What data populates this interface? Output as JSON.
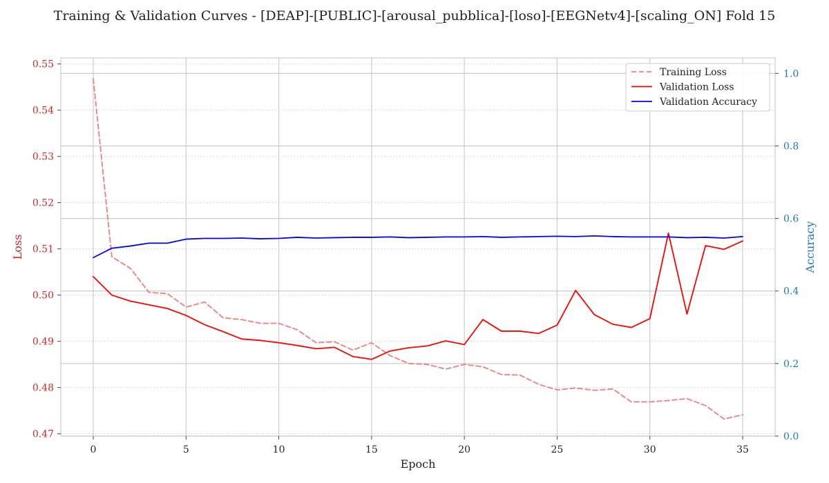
{
  "chart_data": {
    "type": "line",
    "title": "Training & Validation Curves - [DEAP]-[PUBLIC]-[arousal_pubblica]-[loso]-[EEGNetv4]-[scaling_ON] Fold 15",
    "xlabel": "Epoch",
    "ylabel_left": "Loss",
    "ylabel_right": "Accuracy",
    "xlim": [
      -1.75,
      36.75
    ],
    "ylim_left": [
      0.4695,
      0.5513
    ],
    "ylim_right": [
      0.0,
      1.0425
    ],
    "x_ticks": [
      0,
      5,
      10,
      15,
      20,
      25,
      30,
      35
    ],
    "x_tick_labels": [
      "0",
      "5",
      "10",
      "15",
      "20",
      "25",
      "30",
      "35"
    ],
    "y_left_ticks": [
      0.47,
      0.48,
      0.49,
      0.5,
      0.51,
      0.52,
      0.53,
      0.54,
      0.55
    ],
    "y_left_tick_labels": [
      "0.47",
      "0.48",
      "0.49",
      "0.50",
      "0.51",
      "0.52",
      "0.53",
      "0.54",
      "0.55"
    ],
    "y_right_ticks": [
      0.0,
      0.2,
      0.4,
      0.6,
      0.8,
      1.0
    ],
    "y_right_tick_labels": [
      "0.0",
      "0.2",
      "0.4",
      "0.6",
      "0.8",
      "1.0"
    ],
    "grid": true,
    "legend_position": "top-right",
    "x": [
      0,
      1,
      2,
      3,
      4,
      5,
      6,
      7,
      8,
      9,
      10,
      11,
      12,
      13,
      14,
      15,
      16,
      17,
      18,
      19,
      20,
      21,
      22,
      23,
      24,
      25,
      26,
      27,
      28,
      29,
      30,
      31,
      32,
      33,
      34,
      35
    ],
    "series": [
      {
        "name": "Training Loss",
        "axis": "left",
        "color": "#f08080",
        "style": "dashed",
        "values": [
          0.5468,
          0.5083,
          0.5058,
          0.5006,
          0.5003,
          0.4974,
          0.4985,
          0.4951,
          0.4947,
          0.4939,
          0.4939,
          0.4925,
          0.4897,
          0.4899,
          0.4881,
          0.4897,
          0.4869,
          0.4852,
          0.485,
          0.484,
          0.485,
          0.4845,
          0.4828,
          0.4827,
          0.4807,
          0.4795,
          0.4799,
          0.4794,
          0.4797,
          0.4769,
          0.4769,
          0.4772,
          0.4776,
          0.4761,
          0.4732,
          0.4741
        ]
      },
      {
        "name": "Validation Loss",
        "axis": "left",
        "color": "#ff0000",
        "style": "solid",
        "values": [
          0.504,
          0.5,
          0.4987,
          0.4979,
          0.4971,
          0.4956,
          0.4936,
          0.4921,
          0.4905,
          0.4902,
          0.4897,
          0.4891,
          0.4884,
          0.4887,
          0.4867,
          0.4861,
          0.4879,
          0.4886,
          0.489,
          0.4901,
          0.4893,
          0.4947,
          0.4922,
          0.4922,
          0.4917,
          0.4935,
          0.501,
          0.4958,
          0.4937,
          0.493,
          0.4949,
          0.5134,
          0.4959,
          0.5107,
          0.5099,
          0.5117
        ]
      },
      {
        "name": "Validation Accuracy",
        "axis": "right",
        "color": "#0000ff",
        "style": "solid",
        "values": [
          0.492,
          0.518,
          0.524,
          0.532,
          0.532,
          0.543,
          0.545,
          0.545,
          0.546,
          0.544,
          0.545,
          0.548,
          0.546,
          0.547,
          0.548,
          0.548,
          0.549,
          0.547,
          0.548,
          0.549,
          0.549,
          0.55,
          0.548,
          0.549,
          0.55,
          0.551,
          0.55,
          0.552,
          0.55,
          0.549,
          0.549,
          0.549,
          0.547,
          0.548,
          0.546,
          0.55
        ]
      }
    ]
  }
}
